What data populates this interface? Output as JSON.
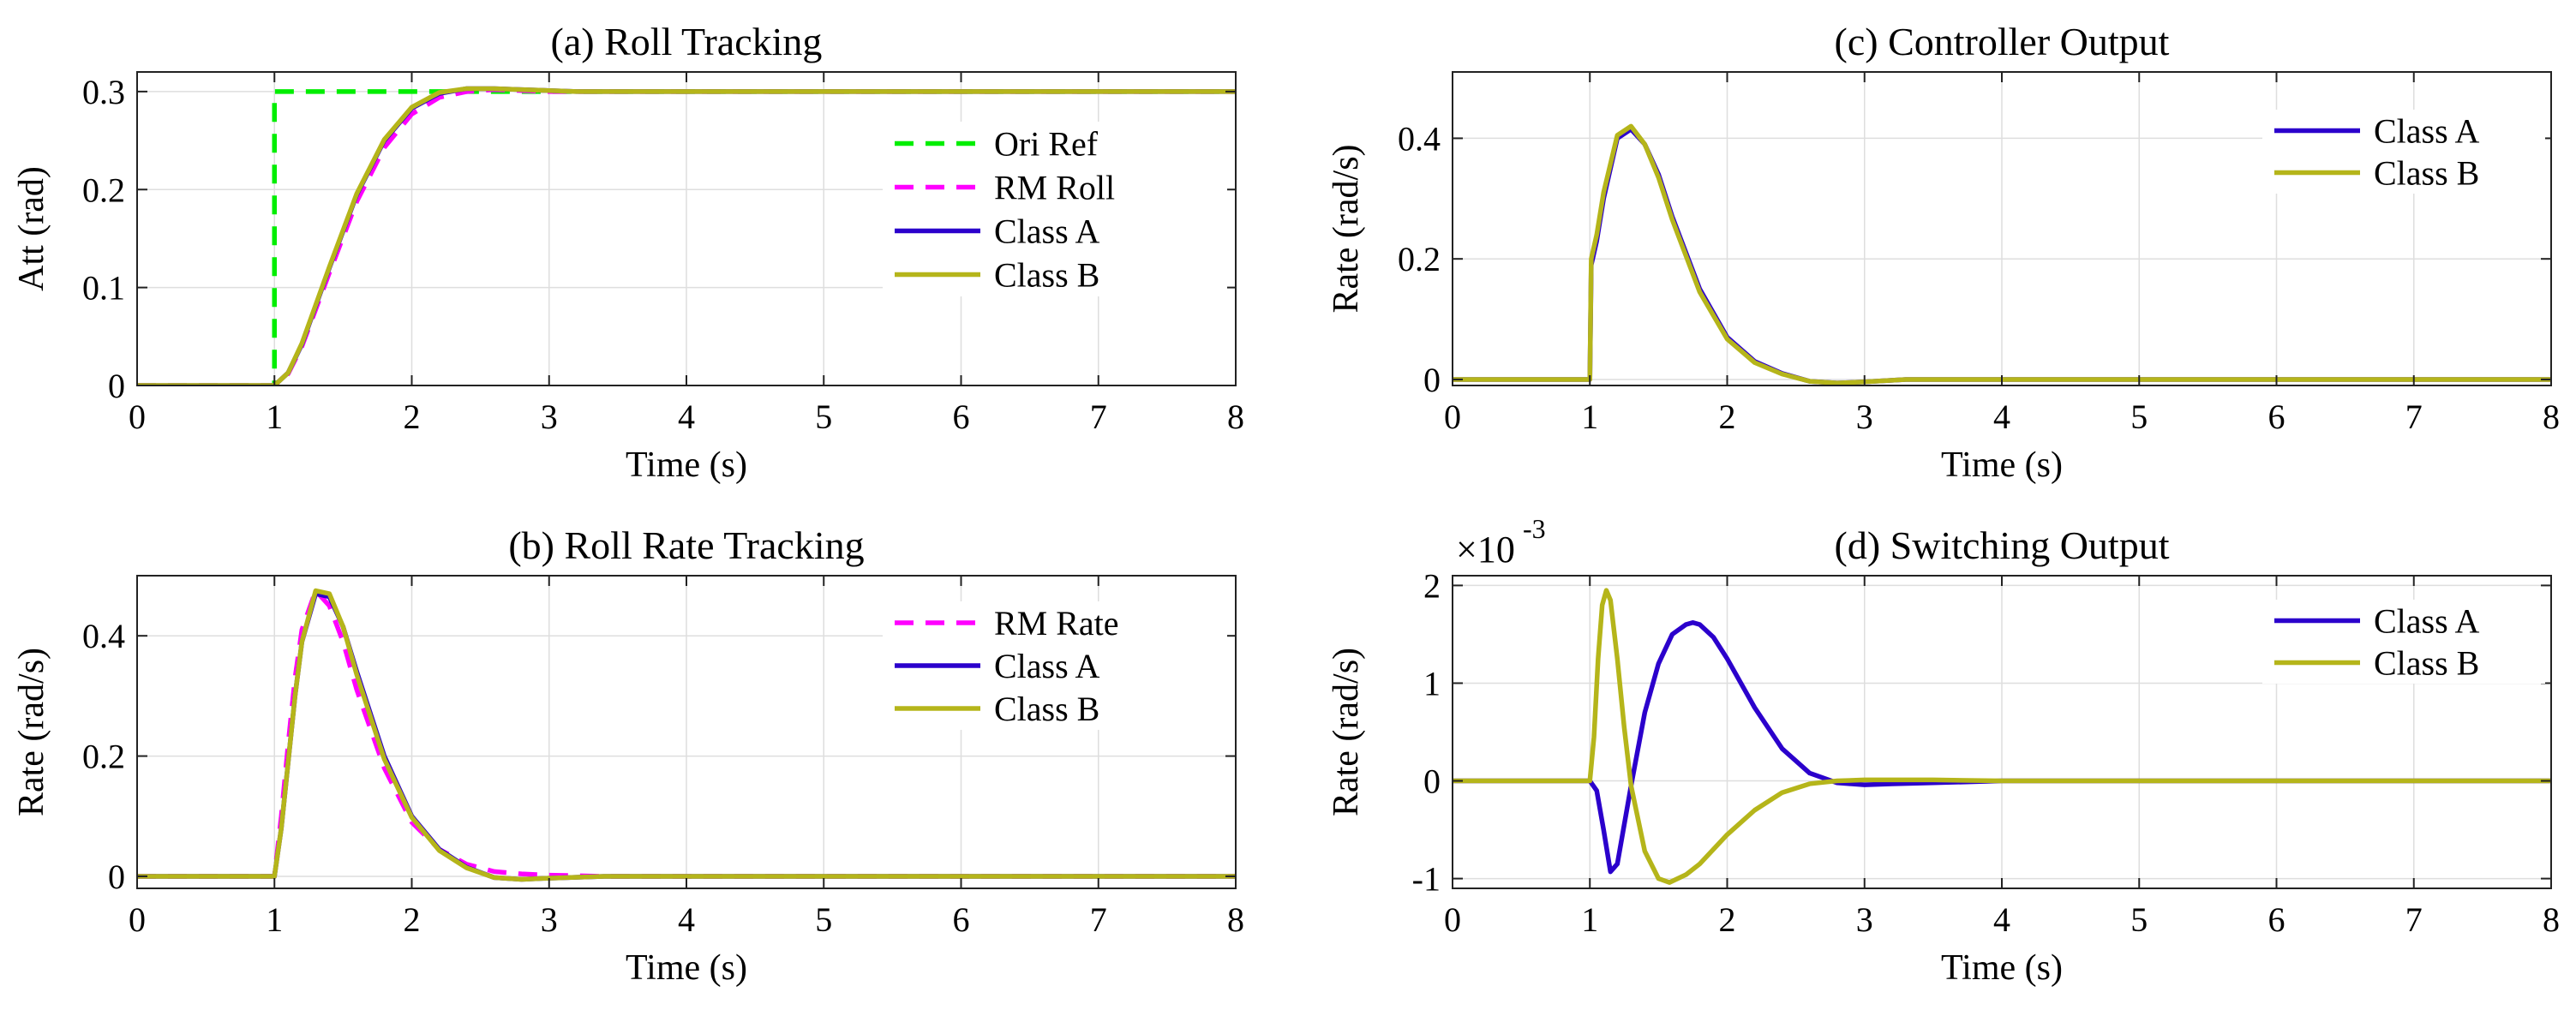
{
  "colors": {
    "ori_ref": "#00ee00",
    "rm": "#ff00ff",
    "class_a": "#2b00cc",
    "class_b": "#b5b51a",
    "grid": "#dedede",
    "axis": "#222222"
  },
  "chart_data": [
    {
      "id": "a",
      "type": "line",
      "title": "(a) Roll Tracking",
      "xlabel": "Time (s)",
      "ylabel": "Att (rad)",
      "xlim": [
        0,
        8
      ],
      "ylim": [
        0,
        0.32
      ],
      "xticks": [
        0,
        1,
        2,
        3,
        4,
        5,
        6,
        7,
        8
      ],
      "xtick_labels": [
        "0",
        "1",
        "2",
        "3",
        "4",
        "5",
        "6",
        "7",
        "8"
      ],
      "yticks": [
        0,
        0.1,
        0.2,
        0.3
      ],
      "ytick_labels": [
        "0",
        "0.1",
        "0.2",
        "0.3"
      ],
      "grid": true,
      "legend_position": "top-right",
      "series": [
        {
          "name": "Ori Ref",
          "color_key": "ori_ref",
          "dashed": true,
          "x": [
            0,
            1,
            1,
            8
          ],
          "y": [
            0,
            0,
            0.3,
            0.3
          ]
        },
        {
          "name": "RM Roll",
          "color_key": "rm",
          "dashed": true,
          "x": [
            0,
            1,
            1.1,
            1.2,
            1.4,
            1.6,
            1.8,
            2.0,
            2.2,
            2.4,
            2.6,
            2.8,
            3.0,
            3.2,
            8
          ],
          "y": [
            0,
            0,
            0.012,
            0.04,
            0.115,
            0.188,
            0.243,
            0.277,
            0.294,
            0.3,
            0.302,
            0.301,
            0.3,
            0.3,
            0.3
          ]
        },
        {
          "name": "Class A",
          "color_key": "class_a",
          "dashed": false,
          "x": [
            0,
            1,
            1.1,
            1.2,
            1.4,
            1.6,
            1.8,
            2.0,
            2.2,
            2.4,
            2.6,
            2.8,
            3.0,
            3.2,
            8
          ],
          "y": [
            0,
            0,
            0.013,
            0.042,
            0.12,
            0.195,
            0.25,
            0.283,
            0.298,
            0.303,
            0.303,
            0.302,
            0.301,
            0.3,
            0.3
          ]
        },
        {
          "name": "Class B",
          "color_key": "class_b",
          "dashed": false,
          "x": [
            0,
            1,
            1.1,
            1.2,
            1.4,
            1.6,
            1.8,
            2.0,
            2.2,
            2.4,
            2.6,
            2.8,
            3.0,
            3.2,
            8
          ],
          "y": [
            0,
            0,
            0.013,
            0.043,
            0.121,
            0.196,
            0.251,
            0.284,
            0.299,
            0.303,
            0.303,
            0.302,
            0.301,
            0.3,
            0.3
          ]
        }
      ]
    },
    {
      "id": "b",
      "type": "line",
      "title": "(b) Roll Rate Tracking",
      "xlabel": "Time (s)",
      "ylabel": "Rate (rad/s)",
      "xlim": [
        0,
        8
      ],
      "ylim": [
        -0.02,
        0.5
      ],
      "xticks": [
        0,
        1,
        2,
        3,
        4,
        5,
        6,
        7,
        8
      ],
      "xtick_labels": [
        "0",
        "1",
        "2",
        "3",
        "4",
        "5",
        "6",
        "7",
        "8"
      ],
      "yticks": [
        0,
        0.2,
        0.4
      ],
      "ytick_labels": [
        "0",
        "0.2",
        "0.4"
      ],
      "grid": true,
      "legend_position": "top-right",
      "series": [
        {
          "name": "RM Rate",
          "color_key": "rm",
          "dashed": true,
          "x": [
            0,
            1,
            1.05,
            1.1,
            1.15,
            1.2,
            1.3,
            1.4,
            1.5,
            1.6,
            1.8,
            2.0,
            2.2,
            2.4,
            2.6,
            2.8,
            3.0,
            3.4,
            8
          ],
          "y": [
            0,
            0,
            0.1,
            0.22,
            0.33,
            0.41,
            0.475,
            0.45,
            0.39,
            0.31,
            0.18,
            0.09,
            0.045,
            0.02,
            0.008,
            0.004,
            0.002,
            0,
            0
          ]
        },
        {
          "name": "Class A",
          "color_key": "class_a",
          "dashed": false,
          "x": [
            0,
            1,
            1.05,
            1.1,
            1.15,
            1.2,
            1.3,
            1.4,
            1.5,
            1.6,
            1.8,
            2.0,
            2.2,
            2.4,
            2.6,
            2.8,
            3.0,
            3.4,
            8
          ],
          "y": [
            0,
            0,
            0.08,
            0.19,
            0.3,
            0.39,
            0.47,
            0.465,
            0.415,
            0.34,
            0.2,
            0.1,
            0.045,
            0.015,
            -0.002,
            -0.005,
            -0.003,
            0,
            0
          ]
        },
        {
          "name": "Class B",
          "color_key": "class_b",
          "dashed": false,
          "x": [
            0,
            1,
            1.05,
            1.1,
            1.15,
            1.2,
            1.3,
            1.4,
            1.5,
            1.6,
            1.8,
            2.0,
            2.2,
            2.4,
            2.6,
            2.8,
            3.0,
            3.4,
            8
          ],
          "y": [
            0,
            0,
            0.08,
            0.19,
            0.3,
            0.39,
            0.475,
            0.47,
            0.415,
            0.335,
            0.195,
            0.098,
            0.043,
            0.014,
            -0.002,
            -0.005,
            -0.003,
            0,
            0
          ]
        }
      ]
    },
    {
      "id": "c",
      "type": "line",
      "title": "(c) Controller Output",
      "xlabel": "Time (s)",
      "ylabel": "Rate (rad/s)",
      "xlim": [
        0,
        8
      ],
      "ylim": [
        -0.01,
        0.51
      ],
      "xticks": [
        0,
        1,
        2,
        3,
        4,
        5,
        6,
        7,
        8
      ],
      "xtick_labels": [
        "0",
        "1",
        "2",
        "3",
        "4",
        "5",
        "6",
        "7",
        "8"
      ],
      "yticks": [
        0,
        0.2,
        0.4
      ],
      "ytick_labels": [
        "0",
        "0.2",
        "0.4"
      ],
      "grid": true,
      "legend_position": "top-right",
      "series": [
        {
          "name": "Class A",
          "color_key": "class_a",
          "dashed": false,
          "x": [
            0,
            1,
            1.01,
            1.05,
            1.1,
            1.2,
            1.3,
            1.4,
            1.5,
            1.6,
            1.8,
            2.0,
            2.2,
            2.4,
            2.6,
            2.8,
            3.0,
            3.3,
            8
          ],
          "y": [
            0,
            0,
            0.19,
            0.23,
            0.3,
            0.4,
            0.415,
            0.39,
            0.34,
            0.27,
            0.15,
            0.07,
            0.03,
            0.01,
            -0.003,
            -0.006,
            -0.004,
            0,
            0
          ]
        },
        {
          "name": "Class B",
          "color_key": "class_b",
          "dashed": false,
          "x": [
            0,
            1,
            1.01,
            1.05,
            1.1,
            1.2,
            1.3,
            1.4,
            1.5,
            1.6,
            1.8,
            2.0,
            2.2,
            2.4,
            2.6,
            2.8,
            3.0,
            3.3,
            8
          ],
          "y": [
            0,
            0,
            0.2,
            0.24,
            0.31,
            0.405,
            0.42,
            0.39,
            0.335,
            0.265,
            0.145,
            0.067,
            0.028,
            0.009,
            -0.003,
            -0.006,
            -0.004,
            0,
            0
          ]
        }
      ]
    },
    {
      "id": "d",
      "type": "line",
      "title": "(d) Switching Output",
      "xlabel": "Time (s)",
      "ylabel": "Rate (rad/s)",
      "exponent_label": "×10",
      "exponent_power": "-3",
      "xlim": [
        0,
        8
      ],
      "ylim": [
        -1.1,
        2.1
      ],
      "xticks": [
        0,
        1,
        2,
        3,
        4,
        5,
        6,
        7,
        8
      ],
      "xtick_labels": [
        "0",
        "1",
        "2",
        "3",
        "4",
        "5",
        "6",
        "7",
        "8"
      ],
      "yticks": [
        -1,
        0,
        1,
        2
      ],
      "ytick_labels": [
        "-1",
        "0",
        "1",
        "2"
      ],
      "grid": true,
      "legend_position": "top-right",
      "series": [
        {
          "name": "Class A",
          "color_key": "class_a",
          "dashed": false,
          "x": [
            0,
            1,
            1.05,
            1.1,
            1.15,
            1.2,
            1.3,
            1.4,
            1.5,
            1.6,
            1.7,
            1.75,
            1.8,
            1.9,
            2.0,
            2.2,
            2.4,
            2.6,
            2.8,
            3.0,
            3.2,
            3.5,
            4.0,
            8
          ],
          "y": [
            0,
            0,
            -0.1,
            -0.5,
            -0.93,
            -0.85,
            -0.05,
            0.7,
            1.2,
            1.5,
            1.6,
            1.62,
            1.6,
            1.47,
            1.25,
            0.75,
            0.33,
            0.08,
            -0.02,
            -0.04,
            -0.03,
            -0.02,
            0,
            0
          ]
        },
        {
          "name": "Class B",
          "color_key": "class_b",
          "dashed": false,
          "x": [
            0,
            1,
            1.03,
            1.06,
            1.09,
            1.12,
            1.15,
            1.2,
            1.25,
            1.3,
            1.4,
            1.5,
            1.58,
            1.7,
            1.8,
            2.0,
            2.2,
            2.4,
            2.6,
            2.8,
            3.0,
            3.5,
            4.0,
            8
          ],
          "y": [
            0,
            0,
            0.45,
            1.25,
            1.8,
            1.95,
            1.85,
            1.25,
            0.55,
            -0.05,
            -0.72,
            -1.0,
            -1.04,
            -0.96,
            -0.85,
            -0.55,
            -0.3,
            -0.12,
            -0.03,
            0,
            0.01,
            0.01,
            0,
            0
          ]
        }
      ]
    }
  ]
}
